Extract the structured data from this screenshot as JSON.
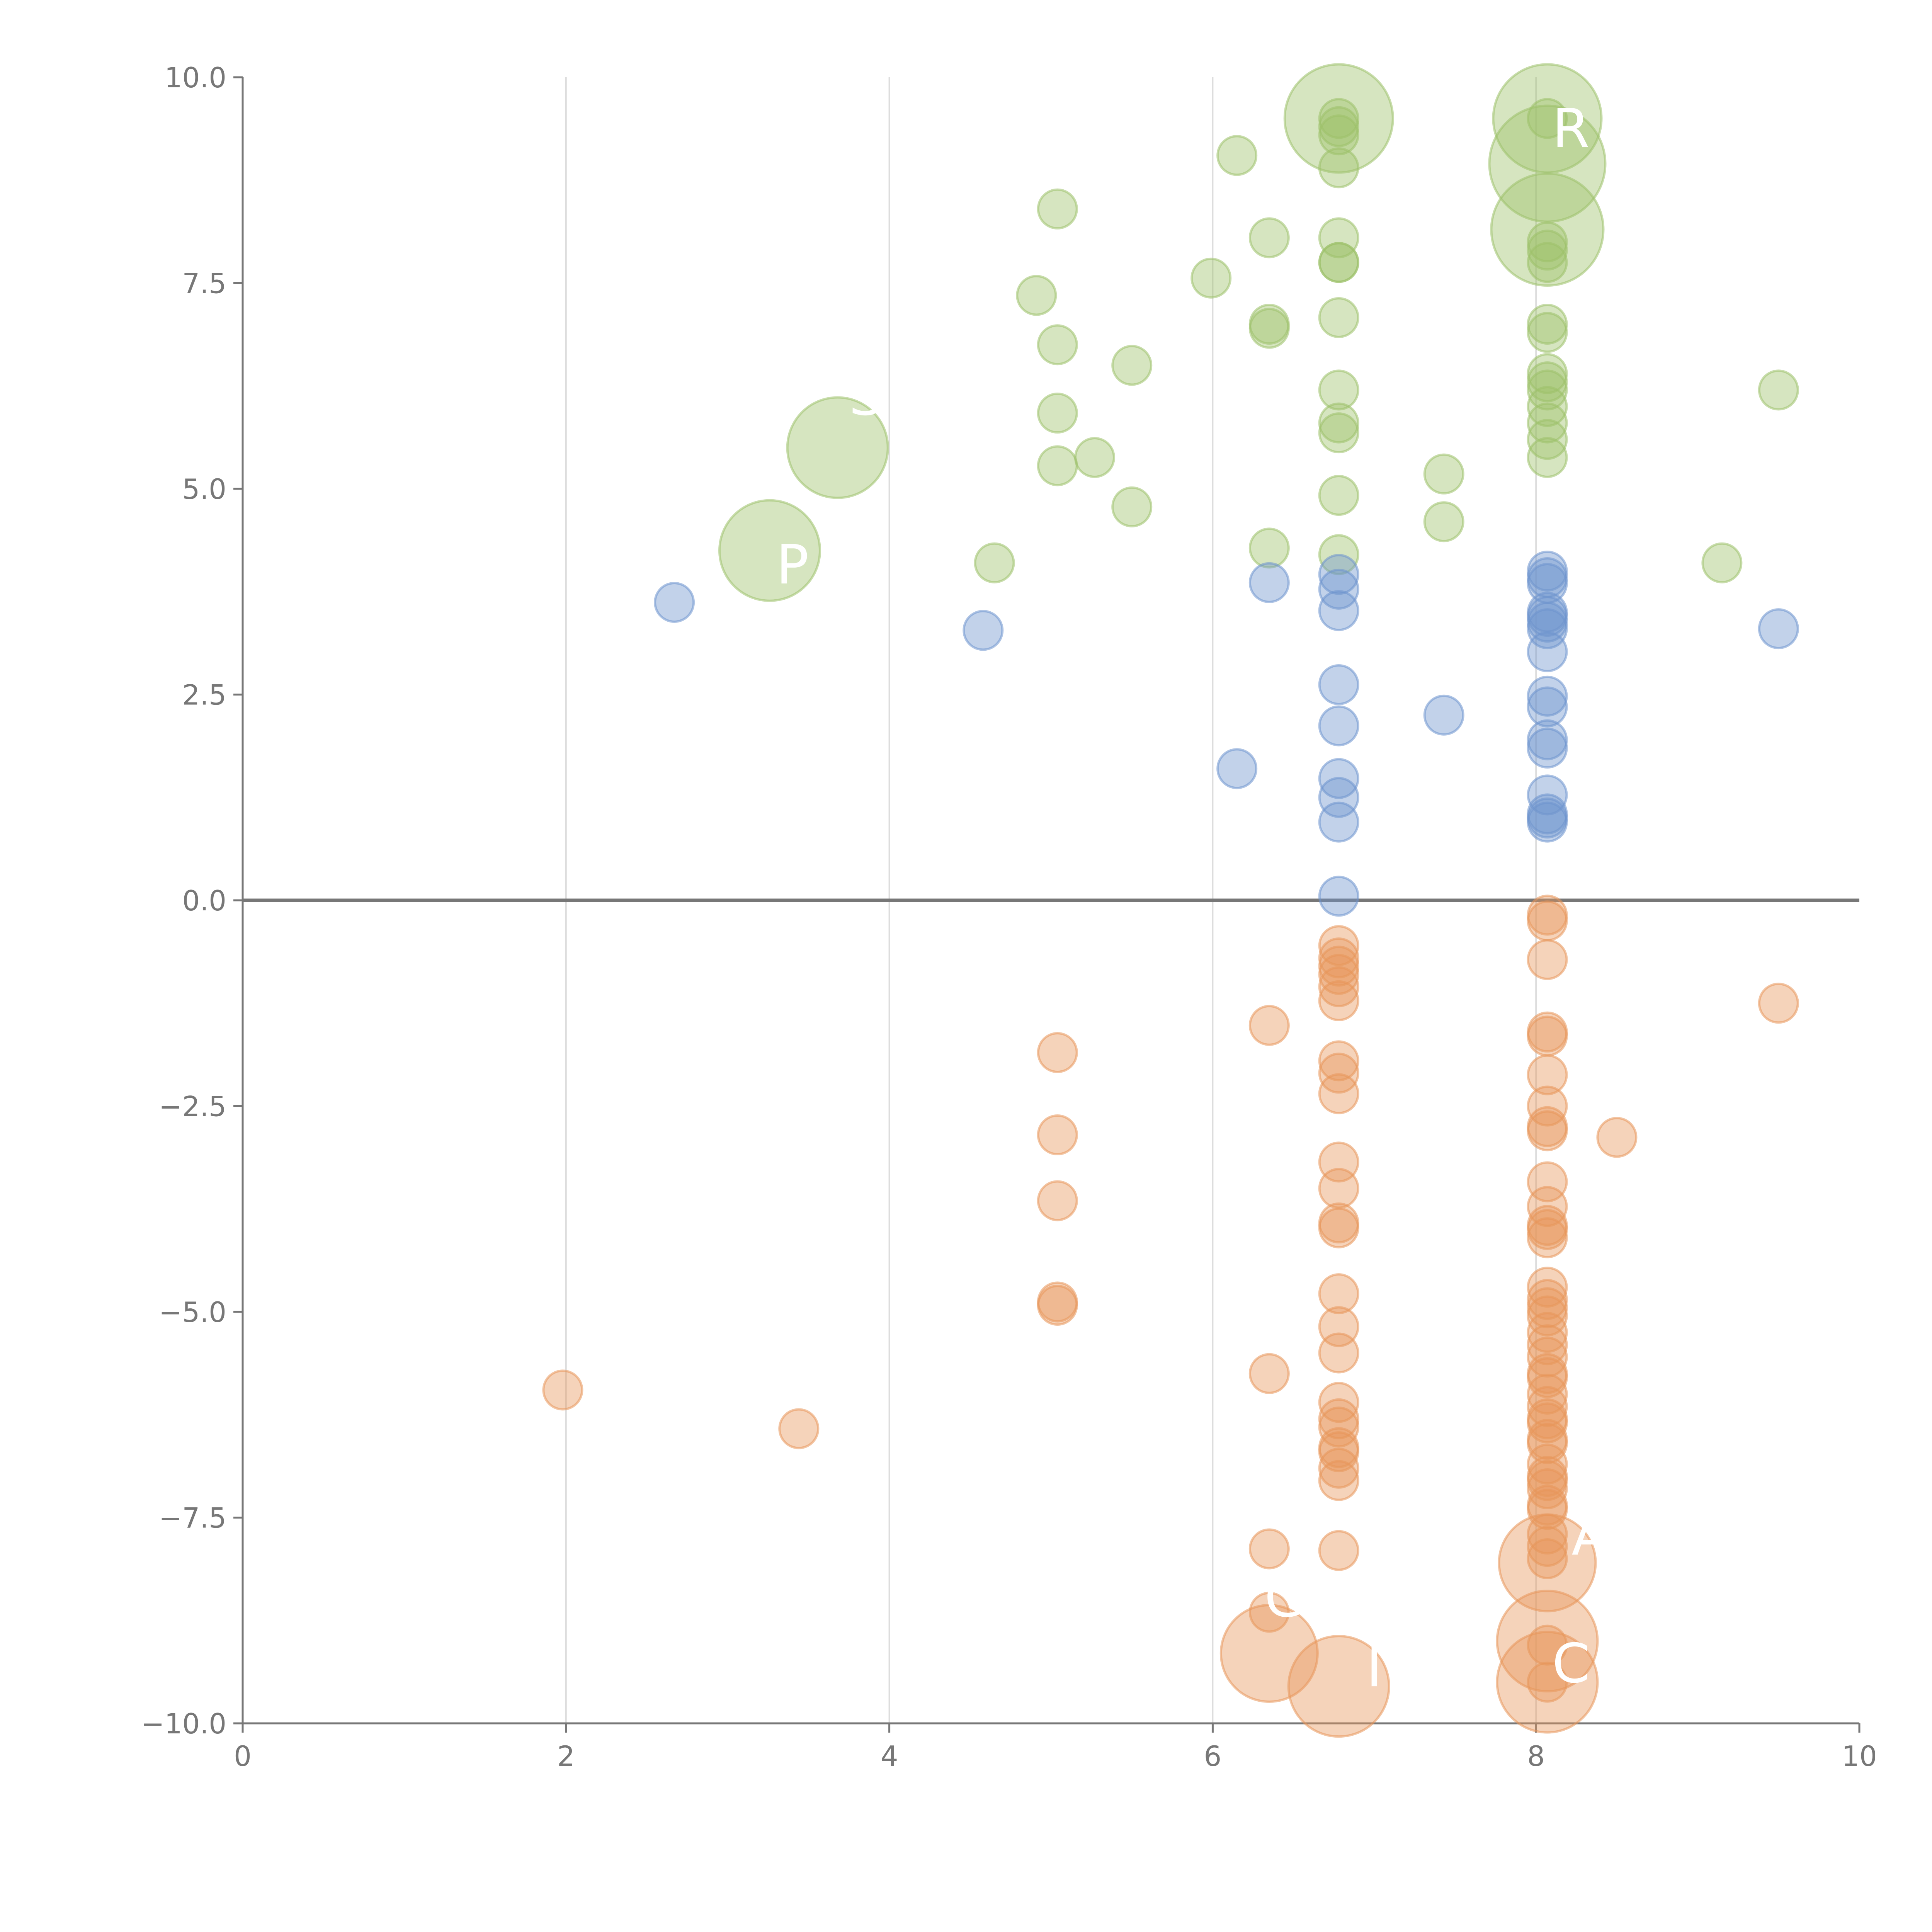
{
  "chart_data": {
    "type": "scatter",
    "title": "",
    "xlabel": "",
    "ylabel": "",
    "xlim": [
      0,
      10
    ],
    "ylim": [
      -10,
      10
    ],
    "grid": "vertical",
    "legend": "none",
    "x_ticks": [
      "0",
      "2",
      "4",
      "6",
      "8",
      "10"
    ],
    "y_ticks": [
      "10.0",
      "7.5",
      "5.0",
      "2.5",
      "0.0",
      "−2.5",
      "−5.0",
      "−7.5",
      "−10.0"
    ],
    "colors": {
      "green": "#9dc16a",
      "blue": "#6d93cd",
      "orange": "#e8965a",
      "axis": "#777777",
      "grid": "#dddddd"
    },
    "series": [
      {
        "name": "green",
        "color": "#9dc16a",
        "points": [
          [
            6.78,
            9.5,
            1
          ],
          [
            6.78,
            9.4,
            1
          ],
          [
            6.78,
            9.3,
            1
          ],
          [
            6.78,
            8.9,
            1
          ],
          [
            6.78,
            8.05,
            1
          ],
          [
            6.78,
            7.75,
            1
          ],
          [
            6.78,
            7.75,
            1
          ],
          [
            6.78,
            7.08,
            1
          ],
          [
            6.78,
            6.2,
            1
          ],
          [
            6.78,
            5.8,
            1
          ],
          [
            6.78,
            5.68,
            1
          ],
          [
            6.78,
            4.92,
            1
          ],
          [
            6.78,
            4.2,
            1
          ],
          [
            8.07,
            9.5,
            1
          ],
          [
            8.07,
            8.0,
            1
          ],
          [
            8.07,
            7.9,
            1
          ],
          [
            8.07,
            7.75,
            1
          ],
          [
            8.07,
            7.0,
            1
          ],
          [
            8.07,
            6.9,
            1
          ],
          [
            8.07,
            6.4,
            1
          ],
          [
            8.07,
            6.3,
            1
          ],
          [
            8.07,
            6.2,
            1
          ],
          [
            8.07,
            6.0,
            1
          ],
          [
            8.07,
            5.8,
            1
          ],
          [
            8.07,
            5.6,
            1
          ],
          [
            8.07,
            5.38,
            1
          ],
          [
            6.15,
            9.05,
            1
          ],
          [
            5.04,
            8.4,
            1
          ],
          [
            6.35,
            8.05,
            1
          ],
          [
            5.99,
            7.56,
            1
          ],
          [
            4.91,
            7.35,
            1
          ],
          [
            6.35,
            7.0,
            1
          ],
          [
            6.35,
            6.95,
            1
          ],
          [
            5.04,
            6.75,
            1
          ],
          [
            5.5,
            6.5,
            1
          ],
          [
            9.5,
            6.2,
            1
          ],
          [
            5.04,
            5.92,
            1
          ],
          [
            5.27,
            5.38,
            1
          ],
          [
            5.04,
            5.28,
            1
          ],
          [
            7.43,
            5.18,
            1
          ],
          [
            5.5,
            4.78,
            1
          ],
          [
            7.43,
            4.6,
            1
          ],
          [
            6.35,
            4.28,
            1
          ],
          [
            4.65,
            4.1,
            1
          ],
          [
            9.15,
            4.1,
            1
          ],
          [
            6.78,
            9.5,
            2.8
          ],
          [
            8.07,
            9.5,
            2.8
          ],
          [
            8.07,
            8.95,
            3.0
          ],
          [
            8.07,
            8.15,
            2.9
          ],
          [
            3.68,
            5.5,
            2.6
          ],
          [
            3.26,
            4.25,
            2.6
          ]
        ]
      },
      {
        "name": "blue",
        "color": "#6d93cd",
        "points": [
          [
            2.67,
            3.62,
            1
          ],
          [
            4.58,
            3.28,
            1
          ],
          [
            6.35,
            3.86,
            1
          ],
          [
            6.78,
            3.96,
            1
          ],
          [
            6.78,
            3.78,
            1
          ],
          [
            6.78,
            3.52,
            1
          ],
          [
            6.78,
            2.62,
            1
          ],
          [
            6.78,
            2.12,
            1
          ],
          [
            6.78,
            1.48,
            1
          ],
          [
            6.78,
            1.25,
            1
          ],
          [
            6.78,
            0.95,
            1
          ],
          [
            6.78,
            0.05,
            1
          ],
          [
            6.15,
            1.6,
            1
          ],
          [
            7.43,
            2.25,
            1
          ],
          [
            9.5,
            3.3,
            1
          ],
          [
            8.07,
            4.0,
            1
          ],
          [
            8.07,
            3.92,
            1
          ],
          [
            8.07,
            3.85,
            1
          ],
          [
            8.07,
            3.5,
            1
          ],
          [
            8.07,
            3.45,
            1
          ],
          [
            8.07,
            3.38,
            1
          ],
          [
            8.07,
            3.3,
            1
          ],
          [
            8.07,
            3.02,
            1
          ],
          [
            8.07,
            2.48,
            1
          ],
          [
            8.07,
            2.35,
            1
          ],
          [
            8.07,
            1.95,
            1
          ],
          [
            8.07,
            1.85,
            1
          ],
          [
            8.07,
            1.28,
            1
          ],
          [
            8.07,
            1.05,
            1
          ],
          [
            8.07,
            1.0,
            1
          ],
          [
            8.07,
            0.95,
            1
          ]
        ]
      },
      {
        "name": "orange",
        "color": "#e8965a",
        "points": [
          [
            6.78,
            -0.55,
            1
          ],
          [
            6.78,
            -0.7,
            1
          ],
          [
            6.78,
            -0.8,
            1
          ],
          [
            6.78,
            -0.9,
            1
          ],
          [
            6.78,
            -1.05,
            1
          ],
          [
            6.78,
            -1.22,
            1
          ],
          [
            6.78,
            -1.95,
            1
          ],
          [
            6.78,
            -2.1,
            1
          ],
          [
            6.78,
            -2.35,
            1
          ],
          [
            6.78,
            -3.18,
            1
          ],
          [
            6.78,
            -3.5,
            1
          ],
          [
            6.78,
            -3.92,
            1
          ],
          [
            6.78,
            -3.98,
            1
          ],
          [
            6.78,
            -4.78,
            1
          ],
          [
            6.78,
            -5.18,
            1
          ],
          [
            6.78,
            -5.5,
            1
          ],
          [
            6.78,
            -6.1,
            1
          ],
          [
            6.78,
            -6.3,
            1
          ],
          [
            6.78,
            -6.4,
            1
          ],
          [
            6.78,
            -6.65,
            1
          ],
          [
            6.78,
            -6.7,
            1
          ],
          [
            6.78,
            -6.9,
            1
          ],
          [
            6.78,
            -7.05,
            1
          ],
          [
            6.78,
            -7.9,
            1
          ],
          [
            8.07,
            -0.18,
            1
          ],
          [
            8.07,
            -0.25,
            1
          ],
          [
            8.07,
            -0.72,
            1
          ],
          [
            8.07,
            -1.6,
            1
          ],
          [
            8.07,
            -1.65,
            1
          ],
          [
            8.07,
            -2.12,
            1
          ],
          [
            8.07,
            -2.5,
            1
          ],
          [
            8.07,
            -2.75,
            1
          ],
          [
            8.07,
            -2.8,
            1
          ],
          [
            8.07,
            -3.42,
            1
          ],
          [
            8.07,
            -3.72,
            1
          ],
          [
            8.07,
            -3.95,
            1
          ],
          [
            8.07,
            -4.0,
            1
          ],
          [
            8.07,
            -4.1,
            1
          ],
          [
            8.07,
            -4.7,
            1
          ],
          [
            8.07,
            -4.85,
            1
          ],
          [
            8.07,
            -4.95,
            1
          ],
          [
            8.07,
            -5.05,
            1
          ],
          [
            8.07,
            -5.25,
            1
          ],
          [
            8.07,
            -5.4,
            1
          ],
          [
            8.07,
            -5.55,
            1
          ],
          [
            8.07,
            -5.75,
            1
          ],
          [
            8.07,
            -5.8,
            1
          ],
          [
            8.07,
            -6.0,
            1
          ],
          [
            8.07,
            -6.15,
            1
          ],
          [
            8.07,
            -6.3,
            1
          ],
          [
            8.07,
            -6.35,
            1
          ],
          [
            8.07,
            -6.55,
            1
          ],
          [
            8.07,
            -6.6,
            1
          ],
          [
            8.07,
            -6.85,
            1
          ],
          [
            8.07,
            -7.0,
            1
          ],
          [
            8.07,
            -7.05,
            1
          ],
          [
            8.07,
            -7.15,
            1
          ],
          [
            8.07,
            -7.35,
            1
          ],
          [
            8.07,
            -7.4,
            1
          ],
          [
            8.07,
            -7.7,
            1
          ],
          [
            8.07,
            -7.85,
            1
          ],
          [
            8.07,
            -8.0,
            1
          ],
          [
            8.07,
            -9.05,
            1
          ],
          [
            8.07,
            -9.5,
            1
          ],
          [
            1.98,
            -5.95,
            1
          ],
          [
            3.44,
            -6.42,
            1
          ],
          [
            5.04,
            -1.85,
            1
          ],
          [
            5.04,
            -2.85,
            1
          ],
          [
            5.04,
            -3.65,
            1
          ],
          [
            5.04,
            -4.88,
            1
          ],
          [
            5.04,
            -4.92,
            1
          ],
          [
            6.35,
            -1.52,
            1
          ],
          [
            6.35,
            -5.75,
            1
          ],
          [
            6.35,
            -7.88,
            1
          ],
          [
            6.35,
            -8.65,
            1
          ],
          [
            8.5,
            -2.88,
            1
          ],
          [
            9.5,
            -1.25,
            1
          ],
          [
            8.07,
            -8.05,
            2.5
          ],
          [
            8.07,
            -9.0,
            2.6
          ],
          [
            8.07,
            -9.5,
            2.6
          ],
          [
            6.78,
            -9.55,
            2.6
          ],
          [
            6.35,
            -9.15,
            2.5
          ]
        ]
      }
    ],
    "annotations": [
      {
        "text": "R",
        "x": 8.1,
        "y": 9.15
      },
      {
        "text": "S",
        "x": 3.75,
        "y": 5.9
      },
      {
        "text": "P",
        "x": 3.3,
        "y": 3.85
      },
      {
        "text": "G",
        "x": 6.32,
        "y": -8.7
      },
      {
        "text": "C",
        "x": 8.1,
        "y": -9.5
      },
      {
        "text": "I",
        "x": 6.95,
        "y": -9.55
      },
      {
        "text": "A",
        "x": 8.22,
        "y": -7.95
      }
    ]
  }
}
